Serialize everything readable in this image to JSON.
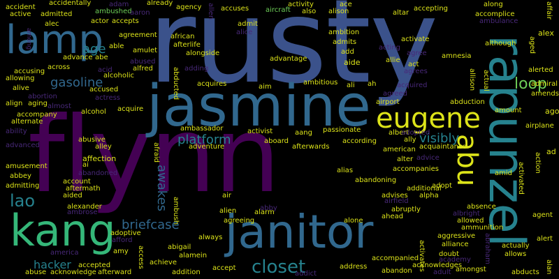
{
  "palette": {
    "background": "#000000",
    "dark_purple": "#440154",
    "indigo": "#3b528b",
    "blue": "#31688e",
    "teal": "#26828e",
    "green": "#1f9e89",
    "light_green": "#35b779",
    "lime": "#6ece58",
    "yellow": "#dce319",
    "purple": "#482878"
  },
  "words": {
    "rusty": "rusty",
    "flynn": "flynn",
    "jasmine": "jasmine",
    "rapunzel": "rapunzel",
    "janitor": "janitor",
    "kang": "kang",
    "lamp": "lamp",
    "eugene": "eugene",
    "abu": "abu",
    "closet": "closet",
    "lao": "lao",
    "gasoline": "gasoline",
    "platform": "platform",
    "briefcase": "briefcase",
    "awakes": "awakes",
    "visibly": "visibly",
    "hacker": "hacker",
    "loop": "loop",
    "accident": "accident",
    "active": "active",
    "accidentally": "accidentally",
    "admitted": "admitted",
    "ambushed": "ambushed",
    "adam": "adam",
    "aaron": "aaron",
    "already": "already",
    "agency": "agency",
    "allen": "allen",
    "accuses": "accuses",
    "aircraft": "aircraft",
    "activity": "activity",
    "also": "also",
    "ace": "ace",
    "alison": "alison",
    "altar": "altar",
    "accepting": "accepting",
    "along": "along",
    "affair": "affair",
    "among": "among",
    "alec": "alec",
    "actor": "actor",
    "accepts": "accepts",
    "admit": "admit",
    "alice": "alice",
    "ambition": "ambition",
    "accomplice": "accomplice",
    "ambulance": "ambulance",
    "alex": "alex",
    "able": "able",
    "agreement": "agreement",
    "african": "african",
    "afterlife": "afterlife",
    "admits": "admits",
    "activate": "activate",
    "acting": "acting",
    "although": "although",
    "aged": "aged",
    "age": "age",
    "advance": "advance",
    "amulet": "amulet",
    "abused": "abused",
    "alongside": "alongside",
    "advantage": "advantage",
    "add": "add",
    "aide": "aide",
    "agree": "agree",
    "allie": "allie",
    "act": "act",
    "amnesia": "amnesia",
    "abe": "abe",
    "ago": "ago",
    "across": "across",
    "accusing": "accusing",
    "allowing": "allowing",
    "acid": "acid",
    "alcoholic": "alcoholic",
    "alfred": "alfred",
    "adding": "adding",
    "agrees": "agrees",
    "alerted": "alerted",
    "admiral": "admiral",
    "amends": "amends",
    "alive": "alive",
    "accused": "accused",
    "abducted": "abducted",
    "acquires": "acquires",
    "ambitious": "ambitious",
    "aim": "aim",
    "ali": "ali",
    "ah": "ah",
    "acquired": "acquired",
    "alien": "alien",
    "allison": "allison",
    "actual": "actual",
    "abortion": "abortion",
    "align": "align",
    "aging": "aging",
    "almost": "almost",
    "actress": "actress",
    "alcohol": "alcohol",
    "acquire": "acquire",
    "agreed": "agreed",
    "airport": "airport",
    "abduction": "abduction",
    "amount": "amount",
    "accompany": "accompany",
    "alternate": "alternate",
    "ambassador": "ambassador",
    "activist": "activist",
    "aang": "aang",
    "passionate": "passionate",
    "albert": "albert",
    "adopted": "adopted",
    "airplane": "airplane",
    "ability": "ability",
    "abusive": "abusive",
    "alley": "alley",
    "afraid": "afraid",
    "adventure": "adventure",
    "aboard": "aboard",
    "afterwards": "afterwards",
    "according": "according",
    "ally": "ally",
    "american": "american",
    "acquaintance": "acquaintance",
    "advice": "advice",
    "activated": "activated",
    "action": "action",
    "ad": "ad",
    "advanced": "advanced",
    "affection": "affection",
    "ai": "ai",
    "amusement": "amusement",
    "abandoned": "abandoned",
    "alter": "alter",
    "accompanies": "accompanies",
    "amid": "amid",
    "abbey": "abbey",
    "admitting": "admitting",
    "account": "account",
    "aftermath": "aftermath",
    "aided": "aided",
    "alias": "alias",
    "abandoning": "abandoning",
    "additional": "additional",
    "adopt": "adopt",
    "advises": "advises",
    "alpha": "alpha",
    "airfield": "airfield",
    "alexander": "alexander",
    "ambrose": "ambrose",
    "abby": "abby",
    "air": "air",
    "abruptly": "abruptly",
    "absence": "absence",
    "alarm": "alarm",
    "albright": "albright",
    "agent": "agent",
    "ambush": "ambush",
    "ahead": "ahead",
    "allowed": "allowed",
    "adoptive": "adoptive",
    "agreeing": "agreeing",
    "alone": "alone",
    "ammunition": "ammunition",
    "afford": "afford",
    "always": "always",
    "aggressive": "aggressive",
    "alliance": "alliance",
    "alert": "alert",
    "abigail": "abigail",
    "america": "america",
    "amy": "amy",
    "achieve": "achieve",
    "access": "access",
    "alamein": "alamein",
    "accompanied": "accompanied",
    "activates": "activates",
    "doubt": "doubt",
    "academy": "academy",
    "abraham": "abraham",
    "actually": "actually",
    "allows": "allows",
    "accepted": "accepted",
    "addition": "addition",
    "accept": "accept",
    "address": "address",
    "abandon": "abandon",
    "acknowledges": "acknowledges",
    "amongst": "amongst",
    "abducts": "abducts",
    "alan": "alan",
    "abuse": "abuse",
    "acknowledge": "acknowledge",
    "afterward": "afterward",
    "addict": "addict",
    "adult": "adult",
    "accident2": "accident"
  }
}
